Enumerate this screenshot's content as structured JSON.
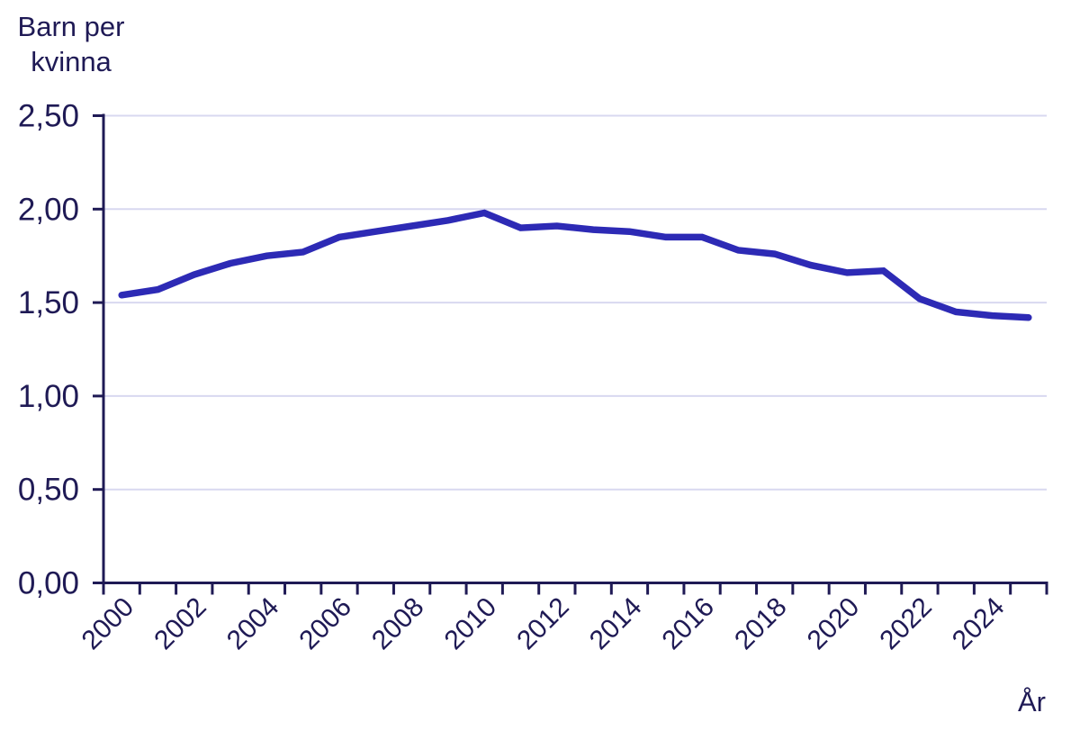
{
  "chart": {
    "title_lines": [
      "Barn per",
      "kvinna"
    ],
    "x_axis_label": "År"
  },
  "chart_data": {
    "type": "line",
    "title": "Barn per kvinna",
    "xlabel": "År",
    "ylabel": "Barn per kvinna",
    "x": [
      2000,
      2001,
      2002,
      2003,
      2004,
      2005,
      2006,
      2007,
      2008,
      2009,
      2010,
      2011,
      2012,
      2013,
      2014,
      2015,
      2016,
      2017,
      2018,
      2019,
      2020,
      2021,
      2022,
      2023,
      2024,
      2025
    ],
    "values": [
      1.54,
      1.57,
      1.65,
      1.71,
      1.75,
      1.77,
      1.85,
      1.88,
      1.91,
      1.94,
      1.98,
      1.9,
      1.91,
      1.89,
      1.88,
      1.85,
      1.85,
      1.78,
      1.76,
      1.7,
      1.66,
      1.67,
      1.52,
      1.45,
      1.43,
      1.42
    ],
    "ylim": [
      0,
      2.5
    ],
    "y_tick_step": 0.5,
    "y_tick_labels": [
      "0,00",
      "0,50",
      "1,00",
      "1,50",
      "2,00",
      "2,50"
    ],
    "x_tick_labels": [
      "2000",
      "2002",
      "2004",
      "2006",
      "2008",
      "2010",
      "2012",
      "2014",
      "2016",
      "2018",
      "2020",
      "2022",
      "2024"
    ],
    "grid": "horizontal",
    "legend": "none",
    "line_color": "#2d2ab5",
    "axis_color": "#1f1a55",
    "gridline_color": "#d8d8f0",
    "background_color": "#ffffff"
  }
}
